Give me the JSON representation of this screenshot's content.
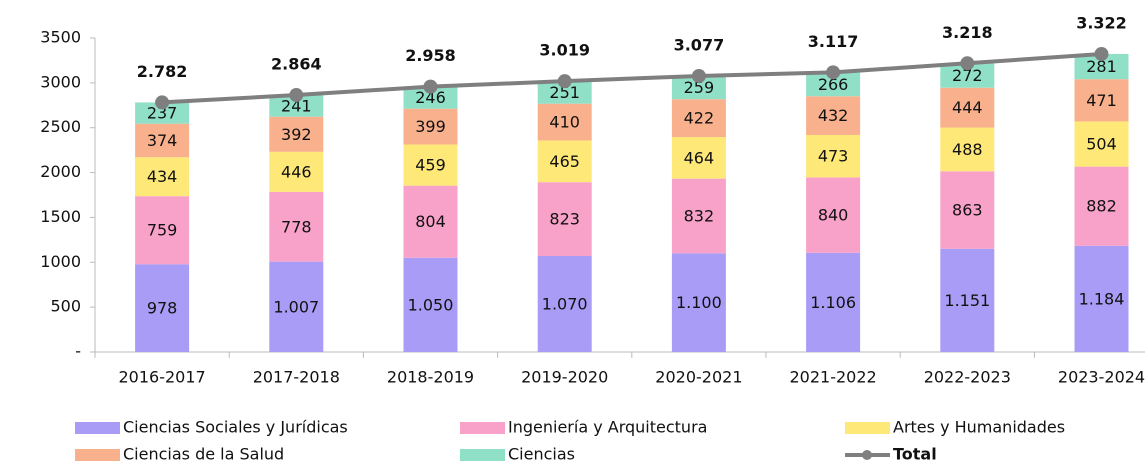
{
  "chart_data": {
    "type": "bar",
    "categories": [
      "2016-2017",
      "2017-2018",
      "2018-2019",
      "2019-2020",
      "2020-2021",
      "2021-2022",
      "2022-2023",
      "2023-2024"
    ],
    "series": [
      {
        "name": "Ciencias Sociales y Jurídicas",
        "color": "#a99cf6",
        "values": [
          978,
          1007,
          1050,
          1070,
          1100,
          1106,
          1151,
          1184
        ],
        "value_labels": [
          "978",
          "1.007",
          "1.050",
          "1.070",
          "1.100",
          "1.106",
          "1.151",
          "1.184"
        ]
      },
      {
        "name": "Ingeniería y Arquitectura",
        "color": "#f9a2c9",
        "values": [
          759,
          778,
          804,
          823,
          832,
          840,
          863,
          882
        ]
      },
      {
        "name": "Artes y Humanidades",
        "color": "#fde878",
        "values": [
          434,
          446,
          459,
          465,
          464,
          473,
          488,
          504
        ]
      },
      {
        "name": "Ciencias de la Salud",
        "color": "#f9b08d",
        "values": [
          374,
          392,
          399,
          410,
          422,
          432,
          444,
          471
        ]
      },
      {
        "name": "Ciencias",
        "color": "#90e0c8",
        "values": [
          237,
          241,
          246,
          251,
          259,
          266,
          272,
          281
        ]
      },
      {
        "name": "Total",
        "type": "line",
        "color": "#7f7f7f",
        "values": [
          2782,
          2864,
          2958,
          3019,
          3077,
          3117,
          3218,
          3322
        ],
        "value_labels": [
          "2.782",
          "2.864",
          "2.958",
          "3.019",
          "3.077",
          "3.117",
          "3.218",
          "3.322"
        ]
      }
    ],
    "ylim": [
      0,
      3500
    ],
    "yticks": [
      {
        "value": 0,
        "label": "-"
      },
      500,
      1000,
      1500,
      2000,
      2500,
      3000,
      3500
    ],
    "grid": false,
    "legend": "bottom"
  }
}
